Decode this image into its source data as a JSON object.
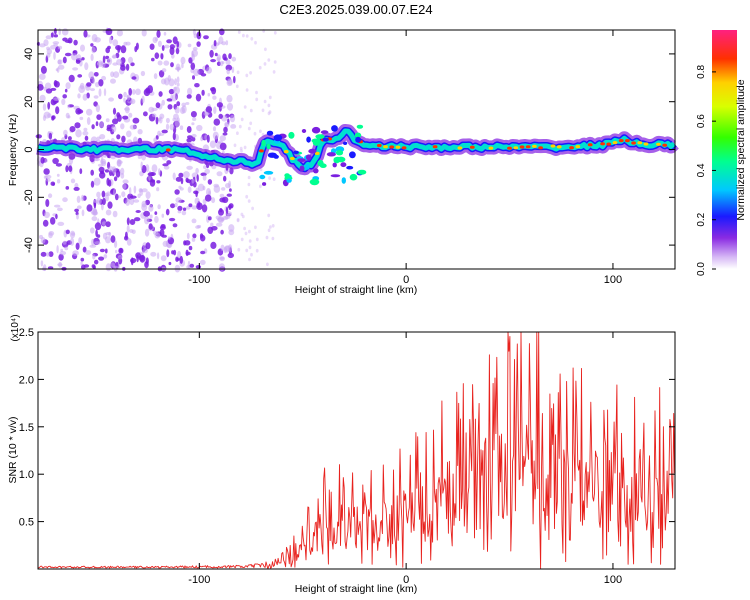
{
  "title": "C2E3.2025.039.00.07.E24",
  "chart_data": [
    {
      "type": "heatmap",
      "xlabel": "Height of straight line (km)",
      "ylabel": "Frequency (Hz)",
      "xlim": [
        -178,
        130
      ],
      "ylim": [
        -50,
        50
      ],
      "xticks": [
        -100,
        0,
        100
      ],
      "yticks": [
        -40,
        -20,
        0,
        20,
        40
      ],
      "colorbar": {
        "label": "Normalized spectral amplitude",
        "range": [
          0.0,
          0.97
        ],
        "ticks": [
          0.0,
          0.2,
          0.4,
          0.6,
          0.8
        ]
      },
      "ridge": [
        [
          -175,
          1
        ],
        [
          -150,
          0
        ],
        [
          -125,
          0
        ],
        [
          -110,
          0
        ],
        [
          -100,
          -2
        ],
        [
          -90,
          -4
        ],
        [
          -80,
          -5
        ],
        [
          -72,
          -6
        ],
        [
          -68,
          4
        ],
        [
          -60,
          2
        ],
        [
          -55,
          -4
        ],
        [
          -50,
          -8
        ],
        [
          -45,
          -6
        ],
        [
          -40,
          4
        ],
        [
          -35,
          4
        ],
        [
          -28,
          8
        ],
        [
          -25,
          4
        ],
        [
          -20,
          2
        ],
        [
          0,
          1
        ],
        [
          20,
          1
        ],
        [
          40,
          1
        ],
        [
          60,
          1
        ],
        [
          80,
          1
        ],
        [
          95,
          2
        ],
        [
          105,
          4
        ],
        [
          115,
          2
        ],
        [
          130,
          2
        ]
      ]
    },
    {
      "type": "line",
      "xlabel": "Height of straight line (km)",
      "ylabel": "SNR (10 * v/v)",
      "multiplier": "(x10⁴)",
      "xlim": [
        -178,
        130
      ],
      "ylim": [
        0,
        2.5
      ],
      "xticks": [
        -100,
        0,
        100
      ],
      "yticks": [
        0.5,
        1.0,
        1.5,
        2.0,
        2.5
      ],
      "series_color": "#e8221e",
      "envelope": [
        [
          -178,
          0.02
        ],
        [
          -120,
          0.02
        ],
        [
          -80,
          0.03
        ],
        [
          -65,
          0.06
        ],
        [
          -55,
          0.2
        ],
        [
          -45,
          0.55
        ],
        [
          -38,
          0.75
        ],
        [
          -30,
          0.7
        ],
        [
          -20,
          0.75
        ],
        [
          -10,
          0.85
        ],
        [
          0,
          0.9
        ],
        [
          10,
          1.1
        ],
        [
          20,
          1.3
        ],
        [
          30,
          1.4
        ],
        [
          40,
          1.6
        ],
        [
          50,
          1.8
        ],
        [
          60,
          1.9
        ],
        [
          70,
          1.7
        ],
        [
          80,
          1.5
        ],
        [
          90,
          1.4
        ],
        [
          100,
          1.4
        ],
        [
          110,
          1.3
        ],
        [
          120,
          1.3
        ],
        [
          130,
          1.3
        ]
      ]
    }
  ]
}
